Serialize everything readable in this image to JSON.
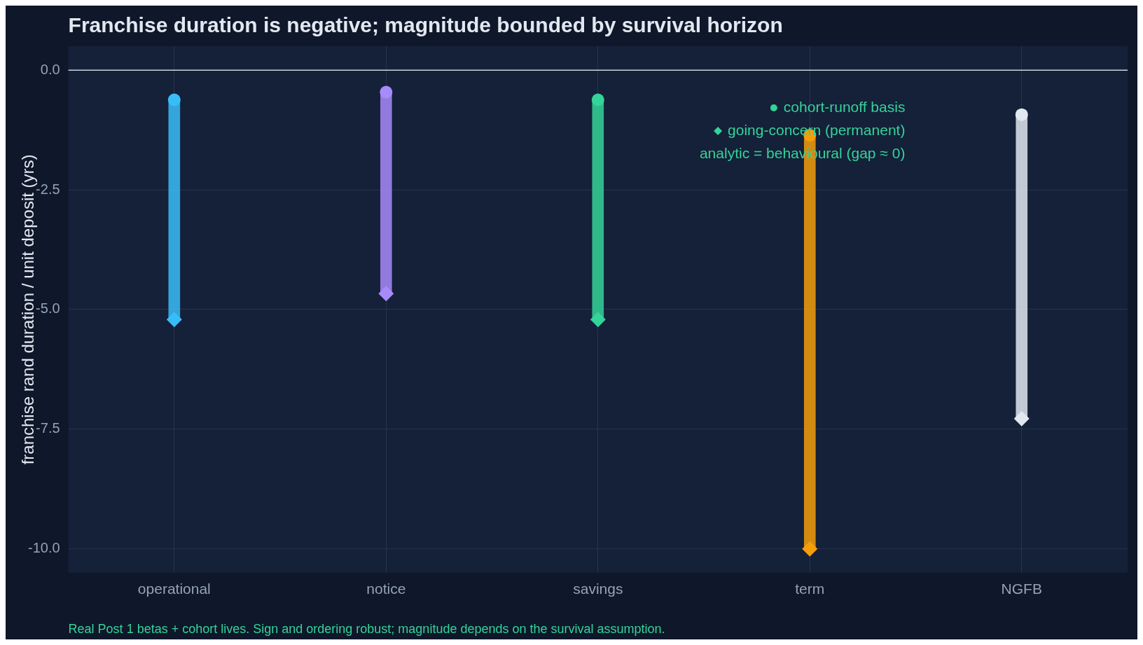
{
  "chart_data": {
    "type": "bar",
    "title": "Franchise duration is negative; magnitude bounded by survival horizon",
    "ylabel": "franchise rand duration / unit deposit (yrs)",
    "categories": [
      "operational",
      "notice",
      "savings",
      "term",
      "NGFB"
    ],
    "series": [
      {
        "colors": [
          "#38bdf8",
          "#a78bfa",
          "#34d399",
          "#f59e0b",
          "#e2e8f0"
        ],
        "base": [
          -0.62,
          -0.46,
          -0.62,
          -1.36,
          -0.93
        ],
        "values": [
          -4.59,
          -4.21,
          -4.59,
          -8.64,
          -6.35
        ]
      },
      {
        "type": "scatter",
        "name": "cohort-runoff basis",
        "marker": "circle",
        "color": "#34d399",
        "colors": [
          "#38bdf8",
          "#a78bfa",
          "#34d399",
          "#f59e0b",
          "#e2e8f0"
        ],
        "x": [
          "operational",
          "notice",
          "savings",
          "term",
          "NGFB"
        ],
        "values": [
          -0.62,
          -0.46,
          -0.62,
          -1.36,
          -0.93
        ]
      },
      {
        "type": "scatter",
        "name": "going-concern (permanent)",
        "marker": "diamond",
        "color": "#34d399",
        "colors": [
          "#38bdf8",
          "#a78bfa",
          "#34d399",
          "#f59e0b",
          "#e2e8f0"
        ],
        "x": [
          "operational",
          "notice",
          "savings",
          "term",
          "NGFB"
        ],
        "values": [
          -5.21,
          -4.67,
          -5.21,
          -10.0,
          -7.28
        ]
      }
    ],
    "ylim": [
      -10.5,
      0.5
    ],
    "yticks": [
      {
        "value": 0,
        "label": "0.0"
      },
      -2.5,
      {
        "value": -5,
        "label": "-5.0"
      },
      -7.5,
      {
        "value": -10,
        "label": "-10.0"
      }
    ],
    "ref_lines": [
      {
        "axis": "y",
        "value": 0,
        "color": "#cbd5e1"
      }
    ],
    "grid": true,
    "legend": "top right",
    "annotations": [
      "analytic = behavioural (gap ≈ 0)",
      "Real Post 1 betas + cohort lives. Sign and ordering robust; magnitude depends on the survival assumption."
    ]
  }
}
